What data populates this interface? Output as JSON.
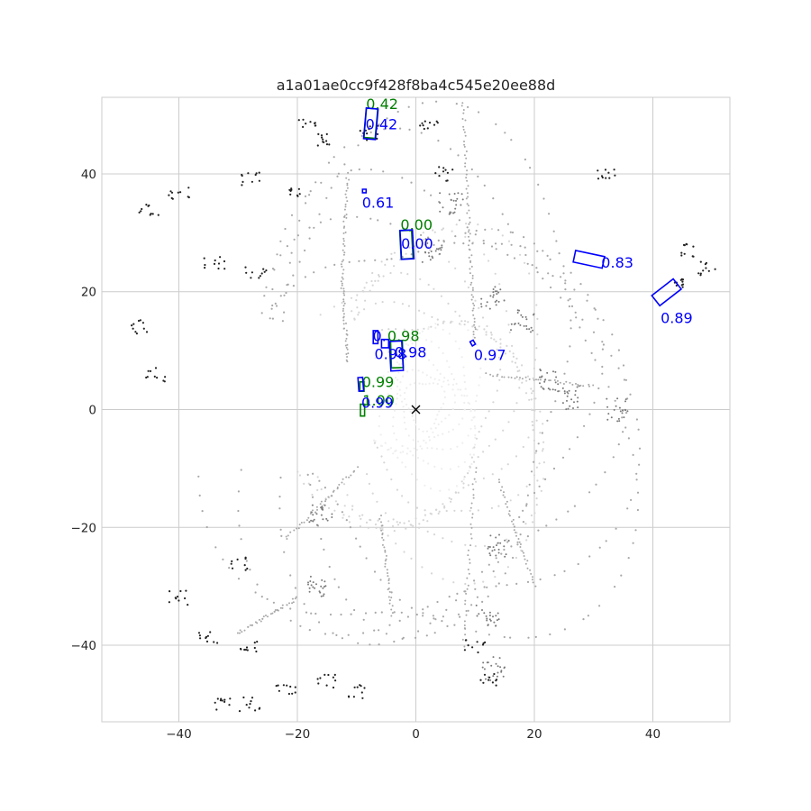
{
  "chart_data": {
    "type": "scatter",
    "title": "a1a01ae0cc9f428f8ba4c545e20ee88d",
    "xlabel": "",
    "ylabel": "",
    "xlim": [
      -53,
      53
    ],
    "ylim": [
      -53,
      53
    ],
    "grid": true,
    "x_ticks": [
      -40,
      -20,
      0,
      20,
      40
    ],
    "y_ticks": [
      40,
      20,
      0,
      -20,
      -40
    ],
    "x_tick_labels": [
      "−40",
      "−20",
      "0",
      "20",
      "40"
    ],
    "y_tick_labels": [
      "40",
      "20",
      "0",
      "−20",
      "−40"
    ],
    "ego": {
      "x": 0,
      "y": 0,
      "marker": "x"
    },
    "colors": {
      "ground_truth": "#008000",
      "prediction": "#0000ff",
      "points_near": "#eeeeee",
      "points_mid": "#a8a8a8",
      "points_far": "#222222",
      "grid": "#cccccc",
      "spine": "#cccccc",
      "ego": "#000000"
    },
    "ground_truth_boxes": [
      {
        "cx": -7.6,
        "cy": 48.6,
        "w": 1.9,
        "l": 5.0,
        "yaw_deg": -5,
        "label": "0.42",
        "lx": -8.4,
        "ly": 51.0
      },
      {
        "cx": -1.6,
        "cy": 28.0,
        "w": 2.0,
        "l": 4.8,
        "yaw_deg": 3,
        "label": "0.00",
        "lx": -2.6,
        "ly": 30.5
      },
      {
        "cx": -3.2,
        "cy": 9.4,
        "w": 2.0,
        "l": 4.6,
        "yaw_deg": 2,
        "label": "0.98",
        "lx": -4.8,
        "ly": 11.6
      },
      {
        "cx": -9.1,
        "cy": 3.9,
        "w": 0.7,
        "l": 1.6,
        "yaw_deg": 0,
        "label": "0.99",
        "lx": -9.1,
        "ly": 3.8
      },
      {
        "cx": -9.0,
        "cy": -0.1,
        "w": 0.7,
        "l": 2.0,
        "yaw_deg": 0,
        "label": "1.00",
        "lx": -9.0,
        "ly": 0.7
      }
    ],
    "prediction_boxes": [
      {
        "cx": -7.6,
        "cy": 48.5,
        "w": 2.0,
        "l": 5.2,
        "yaw_deg": -5,
        "label": "0.42",
        "lx": -8.5,
        "ly": 47.6
      },
      {
        "cx": -8.7,
        "cy": 37.1,
        "w": 0.6,
        "l": 0.6,
        "yaw_deg": 0,
        "label": "0.61",
        "lx": -9.1,
        "ly": 34.3
      },
      {
        "cx": -1.5,
        "cy": 28.0,
        "w": 2.1,
        "l": 4.9,
        "yaw_deg": 3,
        "label": "0.00",
        "lx": -2.5,
        "ly": 27.3
      },
      {
        "cx": 29.2,
        "cy": 25.5,
        "w": 2.0,
        "l": 5.0,
        "yaw_deg": 78,
        "label": "0.83",
        "lx": 31.3,
        "ly": 24.1
      },
      {
        "cx": 42.3,
        "cy": 19.9,
        "w": 2.2,
        "l": 4.6,
        "yaw_deg": -52,
        "label": "0.89",
        "lx": 41.3,
        "ly": 14.7
      },
      {
        "cx": -6.8,
        "cy": 12.3,
        "w": 0.8,
        "l": 2.2,
        "yaw_deg": 0,
        "label": "0.",
        "lx": -7.3,
        "ly": 11.6
      },
      {
        "cx": -3.3,
        "cy": 9.1,
        "w": 2.1,
        "l": 5.0,
        "yaw_deg": 3,
        "label": "0.98",
        "lx": -7.0,
        "ly": 8.6
      },
      {
        "cx": -5.2,
        "cy": 11.2,
        "w": 1.2,
        "l": 1.4,
        "yaw_deg": 0,
        "label": "0.98",
        "lx": -3.6,
        "ly": 8.9
      },
      {
        "cx": 9.6,
        "cy": 11.3,
        "w": 0.6,
        "l": 0.8,
        "yaw_deg": 30,
        "label": "0.97",
        "lx": 9.8,
        "ly": 8.4
      },
      {
        "cx": -9.3,
        "cy": 4.3,
        "w": 0.8,
        "l": 2.3,
        "yaw_deg": 4,
        "label": "0.99",
        "lx": -9.2,
        "ly": 0.3
      }
    ]
  }
}
